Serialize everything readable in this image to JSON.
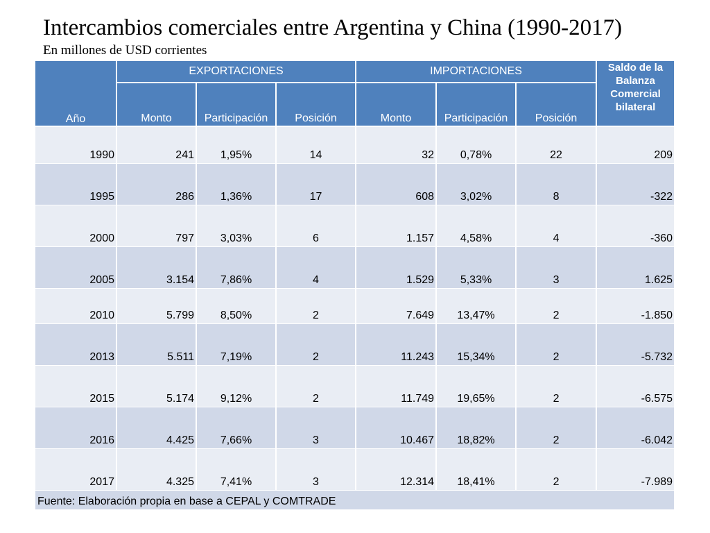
{
  "title": "Intercambios comerciales entre Argentina y China (1990-2017)",
  "subtitle": "En millones de USD corrientes",
  "headers": {
    "year": "Año",
    "exports": "EXPORTACIONES",
    "imports": "IMPORTACIONES",
    "balance": "Saldo de la Balanza Comercial bilateral",
    "amount": "Monto",
    "share": "Participación",
    "rank": "Posición"
  },
  "rows": [
    {
      "year": "1990",
      "exp_amount": "241",
      "exp_share": "1,95%",
      "exp_rank": "14",
      "imp_amount": "32",
      "imp_share": "0,78%",
      "imp_rank": "22",
      "balance": "209"
    },
    {
      "year": "1995",
      "exp_amount": "286",
      "exp_share": "1,36%",
      "exp_rank": "17",
      "imp_amount": "608",
      "imp_share": "3,02%",
      "imp_rank": "8",
      "balance": "-322"
    },
    {
      "year": "2000",
      "exp_amount": "797",
      "exp_share": "3,03%",
      "exp_rank": "6",
      "imp_amount": "1.157",
      "imp_share": "4,58%",
      "imp_rank": "4",
      "balance": "-360"
    },
    {
      "year": "2005",
      "exp_amount": "3.154",
      "exp_share": "7,86%",
      "exp_rank": "4",
      "imp_amount": "1.529",
      "imp_share": "5,33%",
      "imp_rank": "3",
      "balance": "1.625"
    },
    {
      "year": "2010",
      "exp_amount": "5.799",
      "exp_share": "8,50%",
      "exp_rank": "2",
      "imp_amount": "7.649",
      "imp_share": "13,47%",
      "imp_rank": "2",
      "balance": "-1.850"
    },
    {
      "year": "2013",
      "exp_amount": "5.511",
      "exp_share": "7,19%",
      "exp_rank": "2",
      "imp_amount": "11.243",
      "imp_share": "15,34%",
      "imp_rank": "2",
      "balance": "-5.732"
    },
    {
      "year": "2015",
      "exp_amount": "5.174",
      "exp_share": "9,12%",
      "exp_rank": "2",
      "imp_amount": "11.749",
      "imp_share": "19,65%",
      "imp_rank": "2",
      "balance": "-6.575"
    },
    {
      "year": "2016",
      "exp_amount": "4.425",
      "exp_share": "7,66%",
      "exp_rank": "3",
      "imp_amount": "10.467",
      "imp_share": "18,82%",
      "imp_rank": "2",
      "balance": "-6.042"
    },
    {
      "year": "2017",
      "exp_amount": "4.325",
      "exp_share": "7,41%",
      "exp_rank": "3",
      "imp_amount": "12.314",
      "imp_share": "18,41%",
      "imp_rank": "2",
      "balance": "-7.989"
    }
  ],
  "source": "Fuente: Elaboración propia en base a CEPAL y COMTRADE",
  "colors": {
    "header_bg": "#4f81bd",
    "row_light": "#e9edf4",
    "row_dark": "#d0d8e8"
  }
}
